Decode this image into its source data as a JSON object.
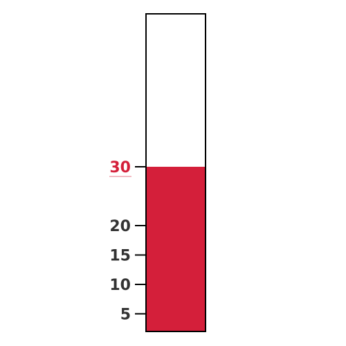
{
  "chart_data": {
    "type": "bar",
    "subtype": "thermometer-gauge",
    "value": 30,
    "value_label": "30",
    "ylim": [
      2,
      56
    ],
    "ticks": [
      {
        "value": 5,
        "label": "5"
      },
      {
        "value": 10,
        "label": "10"
      },
      {
        "value": 15,
        "label": "15"
      },
      {
        "value": 20,
        "label": "20"
      }
    ],
    "grid": false,
    "legend": "none"
  },
  "colors": {
    "fill": "#d41f3a",
    "outline": "#000000",
    "tick_text": "#333333",
    "value_text": "#d41f3a"
  }
}
